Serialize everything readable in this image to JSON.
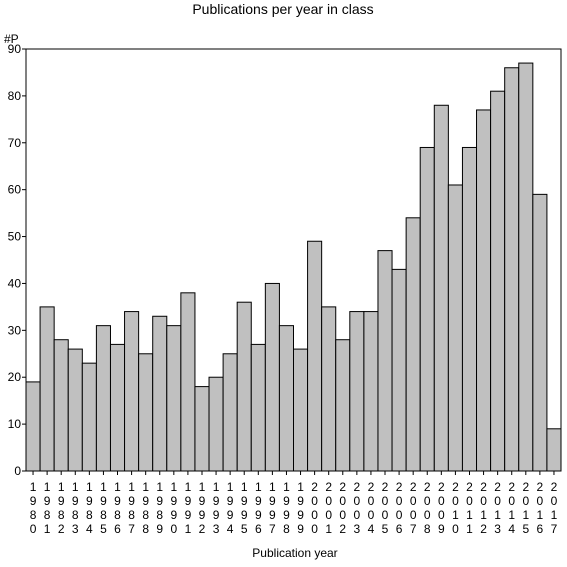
{
  "chart_data": {
    "type": "bar",
    "title": "Publications per year in class",
    "ylabel": "#P",
    "xlabel": "Publication year",
    "ylim": [
      0,
      90
    ],
    "yticks": [
      0,
      10,
      20,
      30,
      40,
      50,
      60,
      70,
      80,
      90
    ],
    "grid": false,
    "categories": [
      "1980",
      "1981",
      "1982",
      "1983",
      "1984",
      "1985",
      "1986",
      "1987",
      "1988",
      "1989",
      "1990",
      "1991",
      "1992",
      "1993",
      "1994",
      "1995",
      "1996",
      "1997",
      "1998",
      "1999",
      "2000",
      "2001",
      "2002",
      "2003",
      "2004",
      "2005",
      "2006",
      "2007",
      "2008",
      "2009",
      "2010",
      "2011",
      "2012",
      "2013",
      "2014",
      "2015",
      "2016",
      "2017"
    ],
    "values": [
      19,
      35,
      28,
      26,
      23,
      31,
      27,
      34,
      25,
      33,
      31,
      38,
      18,
      20,
      25,
      36,
      27,
      40,
      31,
      26,
      49,
      35,
      28,
      34,
      34,
      47,
      43,
      54,
      69,
      78,
      61,
      69,
      77,
      81,
      86,
      87,
      59,
      9
    ],
    "colors": {
      "bar_fill": "#c0c0c0",
      "bar_stroke": "#000000"
    }
  }
}
